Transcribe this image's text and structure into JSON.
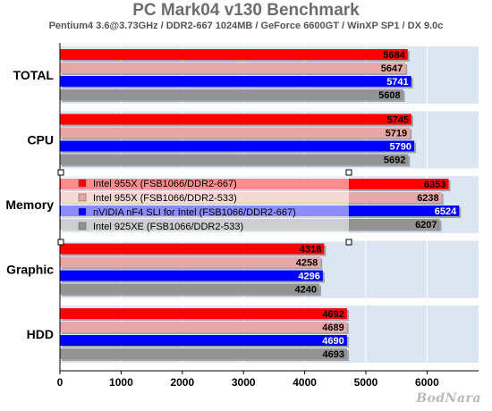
{
  "chart_data": {
    "type": "bar",
    "orientation": "horizontal",
    "title": "PC Mark04 v130 Benchmark",
    "subtitle": "Pentium4 3.6@3.73GHz / DDR2-667 1024MB / GeForce 6600GT / WinXP SP1 / DX 9.0c",
    "categories": [
      "TOTAL",
      "CPU",
      "Memory",
      "Graphic",
      "HDD"
    ],
    "series": [
      {
        "name": "Intel 955X (FSB1066/DDR2-667)",
        "color": "#ff0000",
        "label_color": "#000000",
        "values": [
          5684,
          5745,
          6353,
          4318,
          4692
        ]
      },
      {
        "name": "Intel 955X (FSB1066/DDR2-533)",
        "color": "#e7a7a7",
        "label_color": "#000000",
        "values": [
          5647,
          5719,
          6238,
          4258,
          4689
        ]
      },
      {
        "name": "nVIDIA nF4 SLI for Intel (FSB1066/DDR2-667)",
        "color": "#0000ff",
        "label_color": "#ffffff",
        "values": [
          5741,
          5790,
          6524,
          4296,
          4690
        ]
      },
      {
        "name": "Intel 925XE (FSB1066/DDR2-533)",
        "color": "#939393",
        "label_color": "#000000",
        "values": [
          5608,
          5692,
          6207,
          4240,
          4693
        ]
      }
    ],
    "xlim": [
      0,
      7000
    ],
    "xticks": [
      0,
      1000,
      2000,
      3000,
      4000,
      5000,
      6000
    ],
    "grid": true,
    "legend_position": "center",
    "band_color": "#dce6f2"
  },
  "watermark": "BodNara"
}
